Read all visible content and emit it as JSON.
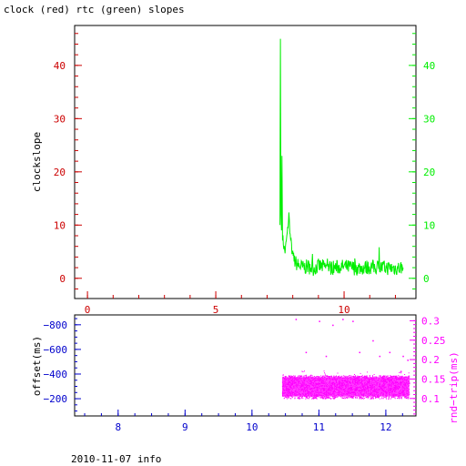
{
  "title": "clock (red) rtc (green) slopes",
  "footer": "2010-11-07 info",
  "colors": {
    "clock": "#cc0000",
    "rtc": "#00ee00",
    "offset": "#0000cc",
    "rndtrip": "#ff00ff",
    "frame": "#000000"
  },
  "chart_data": [
    {
      "type": "line",
      "ylabel": "clockslope",
      "xlim": [
        -0.5,
        12.8
      ],
      "ylim": [
        -3.8,
        47.5
      ],
      "x_ticks": [
        "0",
        "5",
        "10"
      ],
      "y_ticks_left": [
        "0",
        "10",
        "20",
        "30",
        "40"
      ],
      "y_ticks_right": [
        "0",
        "10",
        "20",
        "30",
        "40"
      ],
      "series": [
        {
          "color": "rtc",
          "points": [
            [
              7.5,
              10
            ],
            [
              7.52,
              45
            ],
            [
              7.54,
              12
            ],
            [
              7.56,
              9
            ],
            [
              7.58,
              23
            ],
            [
              7.6,
              8
            ],
            [
              7.65,
              6
            ],
            [
              7.7,
              5
            ],
            [
              7.75,
              7
            ],
            [
              7.8,
              9
            ],
            [
              7.85,
              12
            ],
            [
              7.9,
              8
            ],
            [
              7.95,
              6
            ],
            [
              8.0,
              4
            ],
            [
              8.1,
              3
            ],
            [
              8.2,
              2.5
            ],
            [
              8.4,
              2
            ],
            [
              8.6,
              2.2
            ],
            [
              8.8,
              1.8
            ],
            [
              9.0,
              2.3
            ],
            [
              9.5,
              2.0
            ],
            [
              10.0,
              2.2
            ],
            [
              10.5,
              1.9
            ],
            [
              11.0,
              2.1
            ],
            [
              11.5,
              2.0
            ],
            [
              12.0,
              1.9
            ],
            [
              12.3,
              2.0
            ]
          ]
        }
      ]
    },
    {
      "type": "scatter",
      "ylabel_left": "offset(ms)",
      "ylabel_right": "rnd−trip(ms)",
      "xlim": [
        7.35,
        12.45
      ],
      "ylim_left": [
        -60,
        -880
      ],
      "ylim_right": [
        0.055,
        0.315
      ],
      "x_ticks": [
        "8",
        "9",
        "10",
        "11",
        "12"
      ],
      "y_ticks_left": [
        "−200",
        "−400",
        "−600",
        "−800"
      ],
      "y_ticks_right": [
        "0.1",
        "0.15",
        "0.2",
        "0.25",
        "0.3"
      ],
      "series": [
        {
          "color": "rndtrip",
          "x_range": [
            10.45,
            12.35
          ],
          "band_y": [
            0.1,
            0.16
          ],
          "outliers": [
            [
              10.65,
              0.305
            ],
            [
              11.0,
              0.3
            ],
            [
              11.2,
              0.29
            ],
            [
              11.35,
              0.305
            ],
            [
              11.5,
              0.3
            ],
            [
              11.8,
              0.25
            ],
            [
              12.05,
              0.22
            ],
            [
              12.25,
              0.21
            ],
            [
              12.32,
              0.2
            ],
            [
              10.8,
              0.22
            ],
            [
              11.1,
              0.21
            ],
            [
              11.6,
              0.22
            ],
            [
              11.9,
              0.21
            ]
          ]
        }
      ]
    }
  ]
}
